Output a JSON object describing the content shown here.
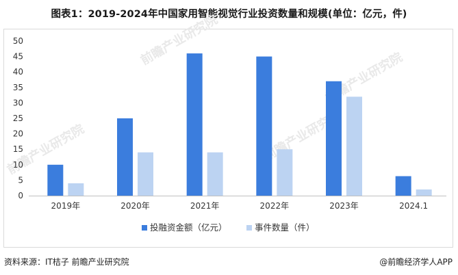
{
  "title": "图表1：2019-2024年中国家用智能视觉行业投资数量和规模(单位：亿元，件)",
  "source_text": "资料来源：IT桔子 前瞻产业研究院",
  "credit_text": "@前瞻经济学人APP",
  "watermark_text": "前瞻产业研究院",
  "colors": {
    "series1": "#3b7ddd",
    "series2": "#bcd3f2",
    "axis": "#bfbfbf",
    "grid": "#e6e6e6"
  },
  "chart_data": {
    "type": "bar",
    "categories": [
      "2019年",
      "2020年",
      "2021年",
      "2022年",
      "2023年",
      "2024.1"
    ],
    "series": [
      {
        "name": "投融资金额（亿元）",
        "values": [
          10,
          25,
          46,
          45,
          37,
          6.3
        ]
      },
      {
        "name": "事件数量（件）",
        "values": [
          4,
          14,
          14,
          15,
          32,
          2
        ]
      }
    ],
    "ylim": [
      0,
      50
    ],
    "yticks": [
      0,
      5,
      10,
      15,
      20,
      25,
      30,
      35,
      40,
      45,
      50
    ],
    "grid": false,
    "legend": "bottom"
  }
}
